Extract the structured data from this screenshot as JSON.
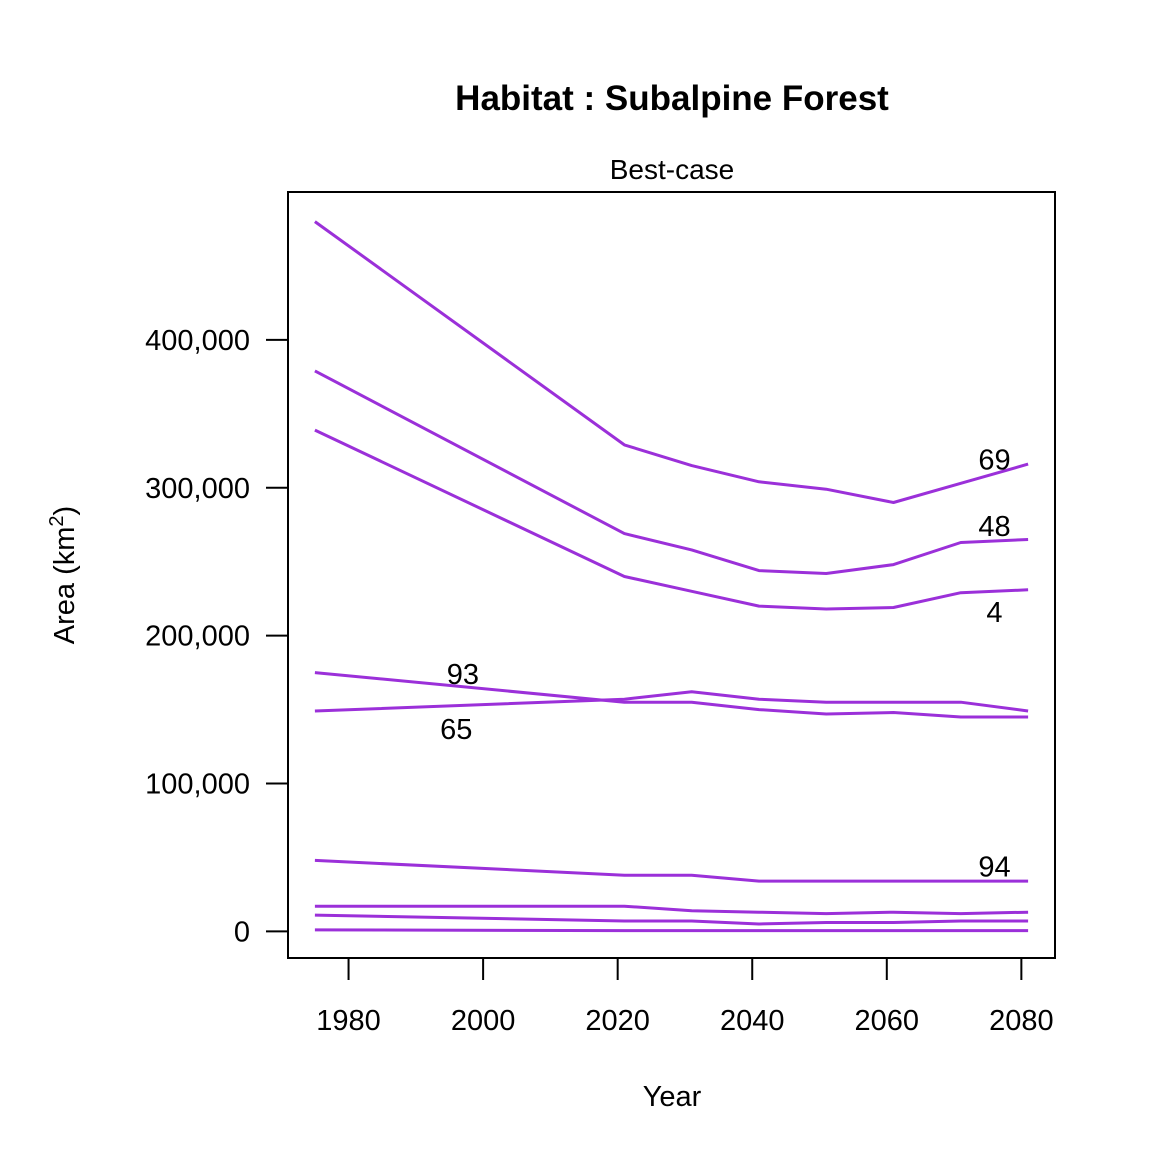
{
  "chart_data": {
    "type": "line",
    "title": "Habitat : Subalpine Forest",
    "subtitle": "Best-case",
    "xlabel": "Year",
    "ylabel": "Area (km",
    "ylabel_sup": "2",
    "ylabel_close": ")",
    "xlim": [
      1971,
      2085
    ],
    "ylim": [
      -18000,
      500000
    ],
    "x_ticks": [
      1980,
      2000,
      2020,
      2040,
      2060,
      2080
    ],
    "x_tick_labels": [
      "1980",
      "2000",
      "2020",
      "2040",
      "2060",
      "2080"
    ],
    "y_ticks": [
      0,
      100000,
      200000,
      300000,
      400000
    ],
    "y_tick_labels": [
      "0",
      "100,000",
      "200,000",
      "300,000",
      "400,000"
    ],
    "line_color": "#9B30D9",
    "grid": false,
    "x": [
      1975,
      2021,
      2031,
      2041,
      2051,
      2061,
      2071,
      2081
    ],
    "series": [
      {
        "label": "69",
        "label_at": [
          2076,
          319000
        ],
        "values": [
          480000,
          329000,
          315000,
          304000,
          299000,
          290000,
          303000,
          316000
        ]
      },
      {
        "label": "48",
        "label_at": [
          2076,
          274000
        ],
        "values": [
          379000,
          269000,
          258000,
          244000,
          242000,
          248000,
          263000,
          265000
        ]
      },
      {
        "label": "4",
        "label_at": [
          2076,
          216000
        ],
        "values": [
          339000,
          240000,
          230000,
          220000,
          218000,
          219000,
          229000,
          231000
        ]
      },
      {
        "label": "93",
        "label_at": [
          1997,
          174000
        ],
        "values": [
          175000,
          155000,
          155000,
          150000,
          147000,
          148000,
          145000,
          145000
        ]
      },
      {
        "label": "65",
        "label_at": [
          1996,
          137000
        ],
        "values": [
          149000,
          157000,
          162000,
          157000,
          155000,
          155000,
          155000,
          149000
        ]
      },
      {
        "label": "94",
        "label_at": [
          2076,
          44000
        ],
        "values": [
          48000,
          38000,
          38000,
          34000,
          34000,
          34000,
          34000,
          34000
        ]
      },
      {
        "label": "",
        "values": [
          17000,
          17000,
          14000,
          13000,
          12000,
          13000,
          12000,
          13000
        ]
      },
      {
        "label": "",
        "values": [
          11000,
          7000,
          7000,
          5000,
          6000,
          6000,
          7000,
          7000
        ]
      },
      {
        "label": "",
        "values": [
          1000,
          500,
          500,
          500,
          500,
          500,
          500,
          500
        ]
      }
    ]
  }
}
